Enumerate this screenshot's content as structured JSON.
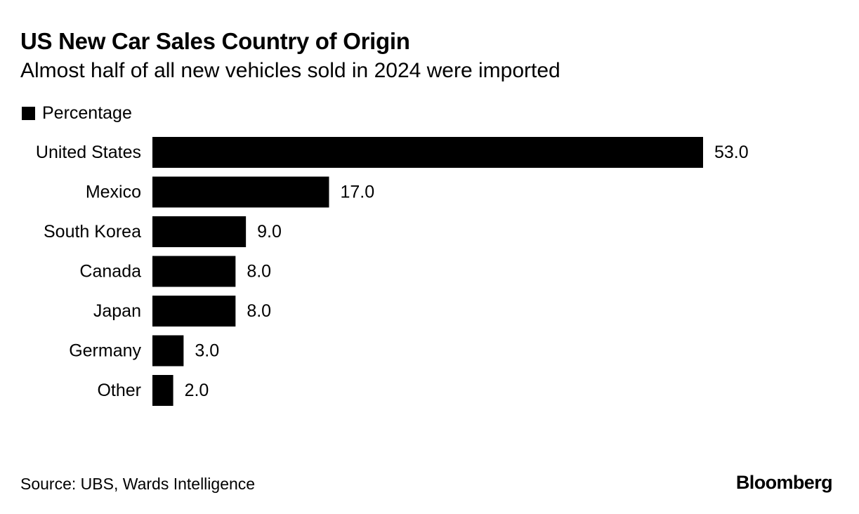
{
  "header": {
    "title": "US New Car Sales Country of Origin",
    "subtitle": "Almost half of all new vehicles sold in 2024 were imported"
  },
  "legend": {
    "label": "Percentage",
    "color": "#000000"
  },
  "footer": {
    "source": "Source: UBS, Wards Intelligence",
    "brand": "Bloomberg"
  },
  "chart_data": {
    "type": "bar",
    "orientation": "horizontal",
    "categories": [
      "United States",
      "Mexico",
      "South Korea",
      "Canada",
      "Japan",
      "Germany",
      "Other"
    ],
    "series": [
      {
        "name": "Percentage",
        "values": [
          53.0,
          17.0,
          9.0,
          8.0,
          8.0,
          3.0,
          2.0
        ],
        "color": "#000000"
      }
    ],
    "value_labels": [
      "53.0",
      "17.0",
      "9.0",
      "8.0",
      "8.0",
      "3.0",
      "2.0"
    ],
    "xlim": [
      0,
      53
    ],
    "grid": false,
    "legend_position": "top-left"
  }
}
